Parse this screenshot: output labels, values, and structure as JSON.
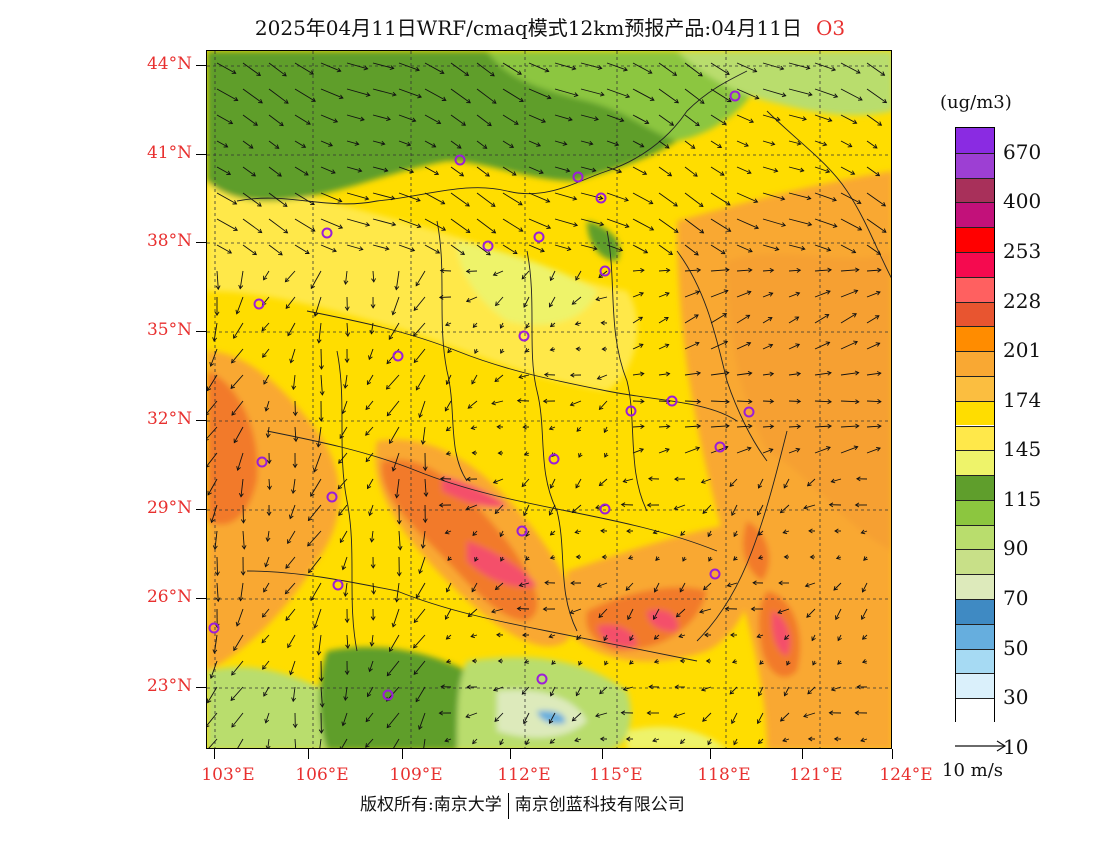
{
  "header": {
    "title": "2025年04月11日WRF/cmaq模式12km预报产品:04月11日",
    "species": "O3"
  },
  "map": {
    "lat_labels": [
      "44°N",
      "41°N",
      "38°N",
      "35°N",
      "32°N",
      "29°N",
      "26°N",
      "23°N"
    ],
    "lon_labels": [
      "103°E",
      "106°E",
      "109°E",
      "112°E",
      "115°E",
      "118°E",
      "121°E",
      "124°E"
    ],
    "lat_range": [
      21,
      44.5
    ],
    "lon_range": [
      102.7,
      124
    ],
    "layer": "ozone concentration with 10 m wind vectors",
    "colors": {
      "land_base": "#f2dc3c",
      "frame": "#000000",
      "lat_lon_labels": "#e8302f",
      "station_marker": "#9b1ed8"
    }
  },
  "legend": {
    "unit": "(ug/m3)",
    "levels": [
      "670",
      "400",
      "253",
      "228",
      "201",
      "174",
      "145",
      "115",
      "90",
      "70",
      "50",
      "30",
      "10"
    ],
    "colors": [
      "#8a2be2",
      "#9d3fd3",
      "#a8305a",
      "#c2117a",
      "#ff0000",
      "#f50a4f",
      "#ff6060",
      "#e85530",
      "#ff8c00",
      "#f9a833",
      "#fbbe40",
      "#ffdd00",
      "#ffe84a",
      "#eef36a",
      "#5f9e2c",
      "#8cc63f",
      "#b9dd6d",
      "#c8e088",
      "#ddeabb",
      "#3f8ac3",
      "#66aede",
      "#a6daf3",
      "#daf0fb",
      "#ffffff"
    ]
  },
  "wind_reference": {
    "label": "10 m/s"
  },
  "footer": {
    "copyright": "版权所有:南京大学",
    "company": "南京创蓝科技有限公司"
  }
}
